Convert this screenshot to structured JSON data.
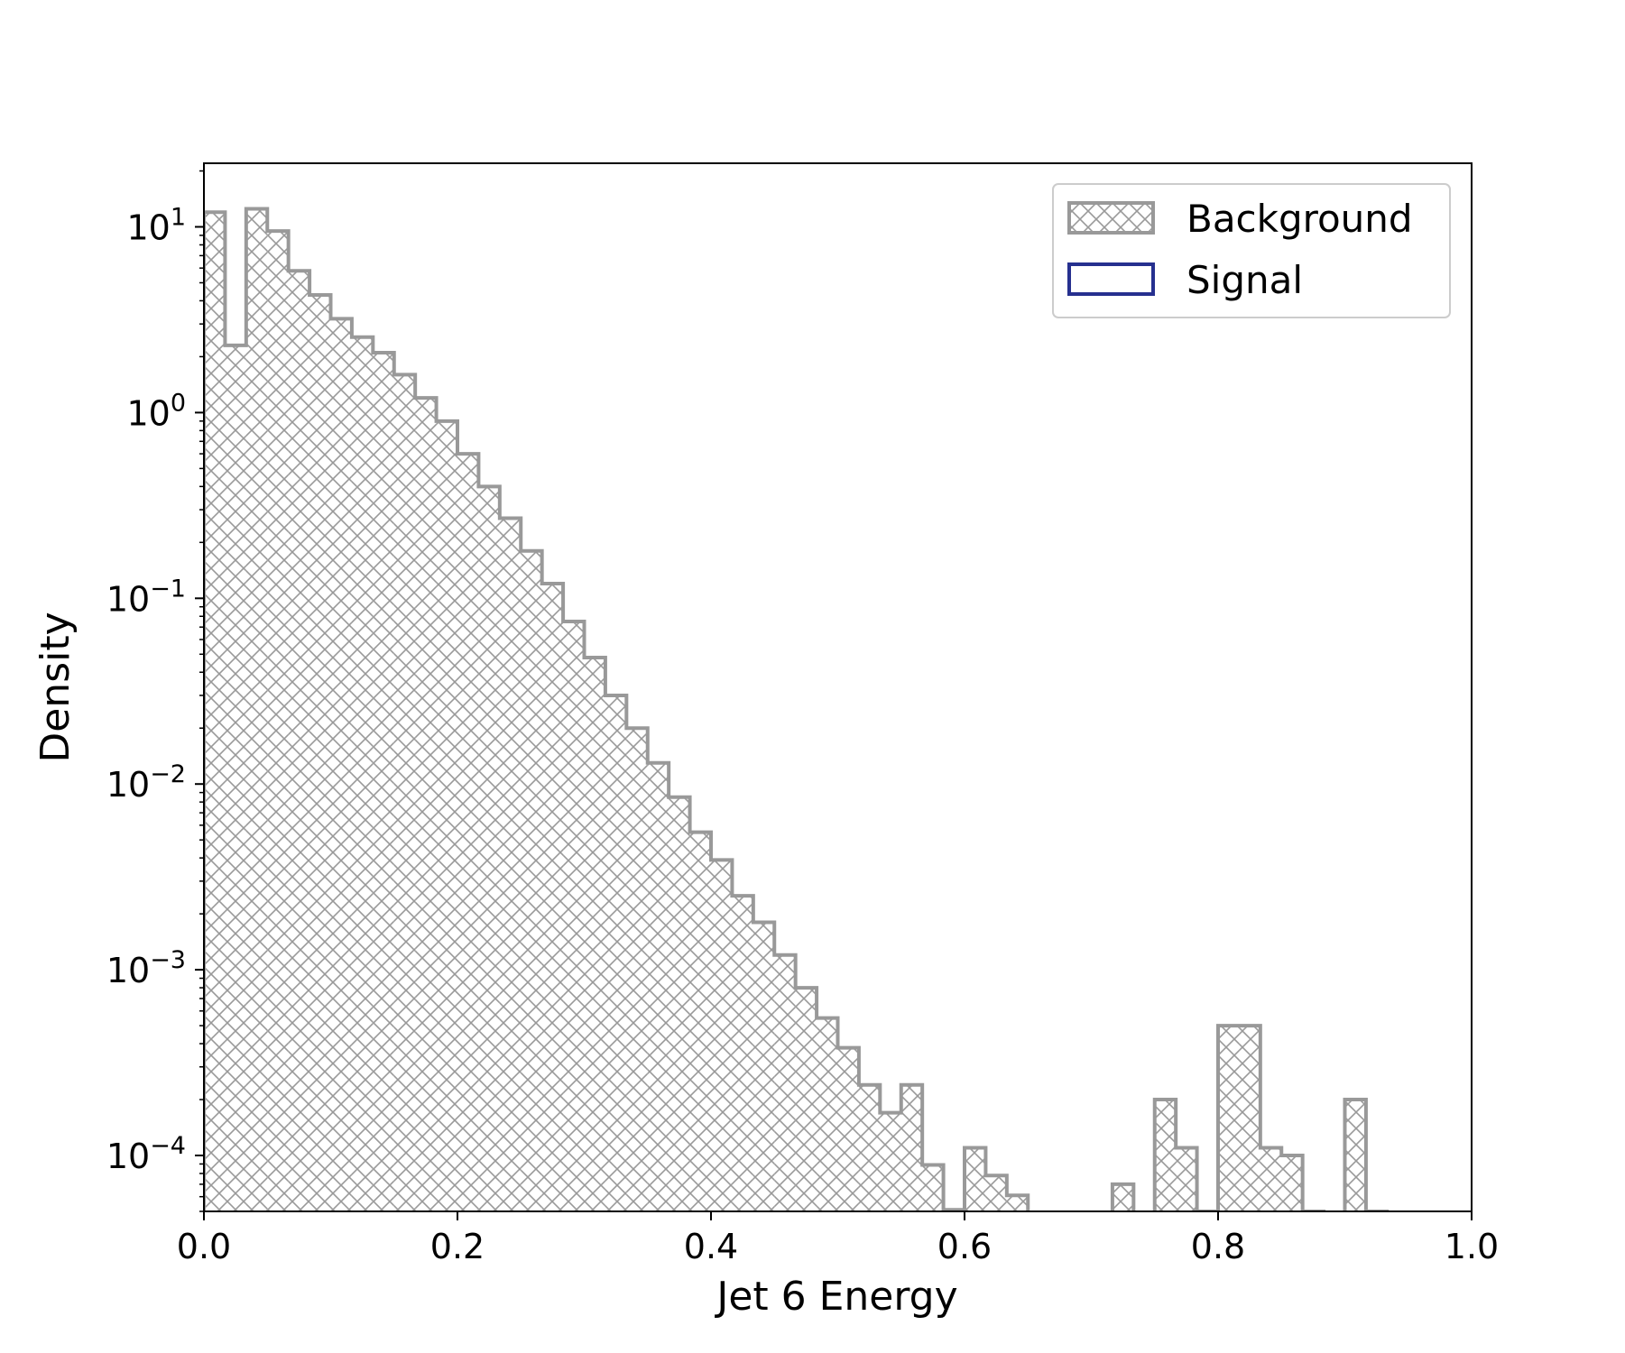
{
  "chart_data": {
    "type": "histogram",
    "xlabel": "Jet 6 Energy",
    "ylabel": "Density",
    "xlim": [
      0.0,
      1.0
    ],
    "ylim": [
      5e-05,
      22
    ],
    "yscale": "log",
    "bin_width": 0.01667,
    "x_ticks": [
      "0.0",
      "0.2",
      "0.4",
      "0.6",
      "0.8",
      "1.0"
    ],
    "y_ticks": [
      {
        "base": "10",
        "exp": "1",
        "value": 10
      },
      {
        "base": "10",
        "exp": "0",
        "value": 1
      },
      {
        "base": "10",
        "exp": "−1",
        "value": 0.1
      },
      {
        "base": "10",
        "exp": "−2",
        "value": 0.01
      },
      {
        "base": "10",
        "exp": "−3",
        "value": 0.001
      },
      {
        "base": "10",
        "exp": "−4",
        "value": 0.0001
      }
    ],
    "legend": {
      "position": "top-right"
    },
    "series": [
      {
        "name": "Background",
        "style": "hatched",
        "color": "#999999",
        "values": [
          12.0,
          2.3,
          12.5,
          9.5,
          5.8,
          4.3,
          3.2,
          2.55,
          2.1,
          1.6,
          1.2,
          0.9,
          0.6,
          0.4,
          0.27,
          0.18,
          0.12,
          0.075,
          0.048,
          0.03,
          0.02,
          0.013,
          0.0085,
          0.0055,
          0.0039,
          0.0025,
          0.0018,
          0.0012,
          0.0008,
          0.00055,
          0.00038,
          0.00024,
          0.00017,
          0.00024,
          8.9e-05,
          5.1e-05,
          0.00011,
          7.8e-05,
          6.1e-05,
          4.4e-05,
          4e-05,
          3e-05,
          0.0,
          7e-05,
          0.0,
          0.0002,
          0.00011,
          5e-05,
          0.0005,
          0.0005,
          0.00011,
          0.0001,
          5e-05,
          0.0,
          0.0002,
          5e-05,
          0.0,
          0.0,
          0.0,
          0.0
        ],
        "note": ""
      },
      {
        "name": "Signal",
        "style": "step",
        "color": "#26308f",
        "values": []
      }
    ]
  }
}
